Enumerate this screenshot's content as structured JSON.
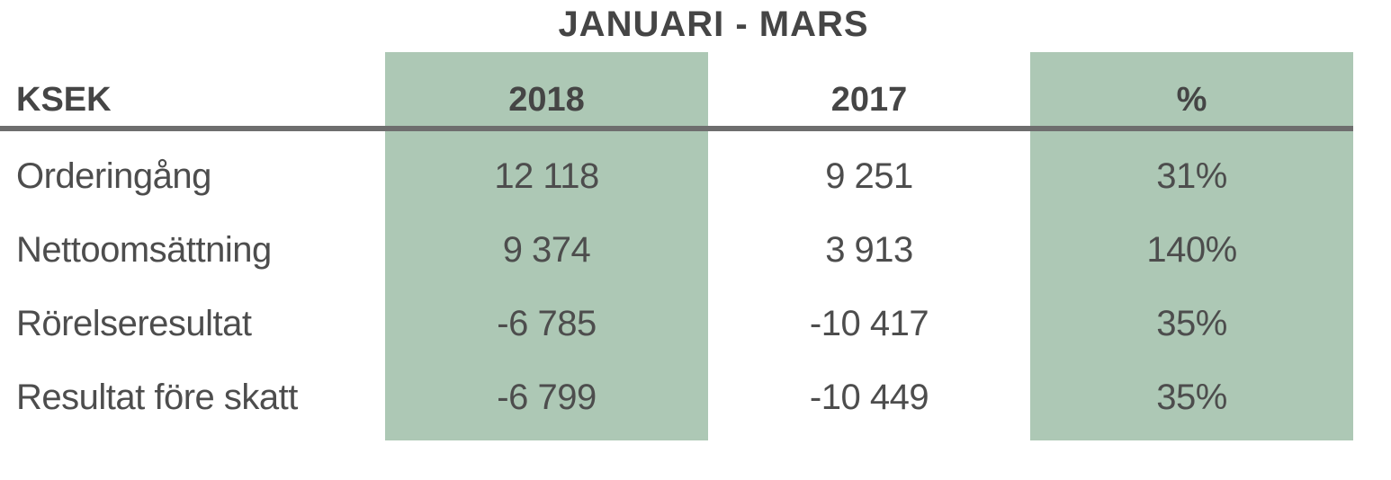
{
  "title": "JANUARI - MARS",
  "table": {
    "row_header_label": "KSEK",
    "columns": [
      "2018",
      "2017",
      "%"
    ],
    "rows": [
      {
        "label": "Orderingång",
        "values": [
          "12 118",
          "9 251",
          "31%"
        ]
      },
      {
        "label": "Nettoomsättning",
        "values": [
          "9 374",
          "3 913",
          "140%"
        ]
      },
      {
        "label": "Rörelseresultat",
        "values": [
          "-6 785",
          "-10 417",
          "35%"
        ]
      },
      {
        "label": "Resultat före skatt",
        "values": [
          "-6 799",
          "-10 449",
          "35%"
        ]
      }
    ],
    "highlight_color": "#adc8b5",
    "divider_color": "#6e6e6e",
    "text_color": "#4d4d4d",
    "header_text_color": "#454545"
  },
  "chart_data": {
    "type": "table",
    "title": "JANUARI - MARS",
    "unit": "KSEK",
    "columns": [
      "2018",
      "2017",
      "%"
    ],
    "rows": [
      {
        "label": "Orderingång",
        "y2018": 12118,
        "y2017": 9251,
        "pct": "31%"
      },
      {
        "label": "Nettoomsättning",
        "y2018": 9374,
        "y2017": 3913,
        "pct": "140%"
      },
      {
        "label": "Rörelseresultat",
        "y2018": -6785,
        "y2017": -10417,
        "pct": "35%"
      },
      {
        "label": "Resultat före skatt",
        "y2018": -6799,
        "y2017": -10449,
        "pct": "35%"
      }
    ],
    "highlighted_columns": [
      "2018",
      "%"
    ]
  }
}
